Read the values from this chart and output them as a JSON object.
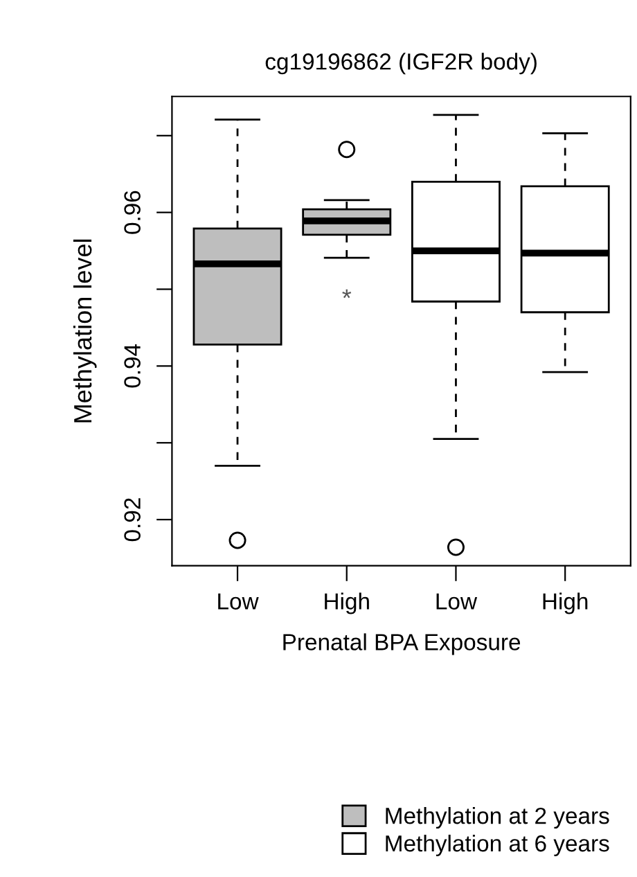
{
  "chart_data": {
    "type": "box",
    "title": "cg19196862 (IGF2R body)",
    "xlabel": "Prenatal BPA Exposure",
    "ylabel": "Methylation level",
    "categories": [
      "Low",
      "High",
      "Low",
      "High"
    ],
    "series": [
      {
        "name": "Methylation at 2 years",
        "color": "#bebebe",
        "boxes": [
          {
            "low": 0.927,
            "q1": 0.9428,
            "median": 0.9533,
            "q3": 0.9579,
            "high": 0.9721,
            "outliers": [
              0.9173
            ]
          },
          {
            "low": 0.9541,
            "q1": 0.9571,
            "median": 0.9589,
            "q3": 0.9604,
            "high": 0.9616,
            "outliers": [
              0.9682
            ]
          },
          null,
          null
        ]
      },
      {
        "name": "Methylation at 6 years",
        "color": "#ffffff",
        "boxes": [
          null,
          null,
          {
            "low": 0.9305,
            "q1": 0.9484,
            "median": 0.955,
            "q3": 0.964,
            "high": 0.9727,
            "outliers": [
              0.9164
            ]
          },
          {
            "low": 0.9392,
            "q1": 0.947,
            "median": 0.9547,
            "q3": 0.9634,
            "high": 0.9703
          }
        ]
      }
    ],
    "annotations": [
      "*"
    ],
    "ylim": [
      0.914,
      0.9751
    ],
    "yticks": [
      0.92,
      {
        "value": 0.93,
        "label": null
      },
      0.94,
      {
        "value": 0.95,
        "label": null
      },
      0.96,
      {
        "value": 0.97,
        "label": null
      }
    ],
    "grid": false,
    "legend": "bottom"
  }
}
